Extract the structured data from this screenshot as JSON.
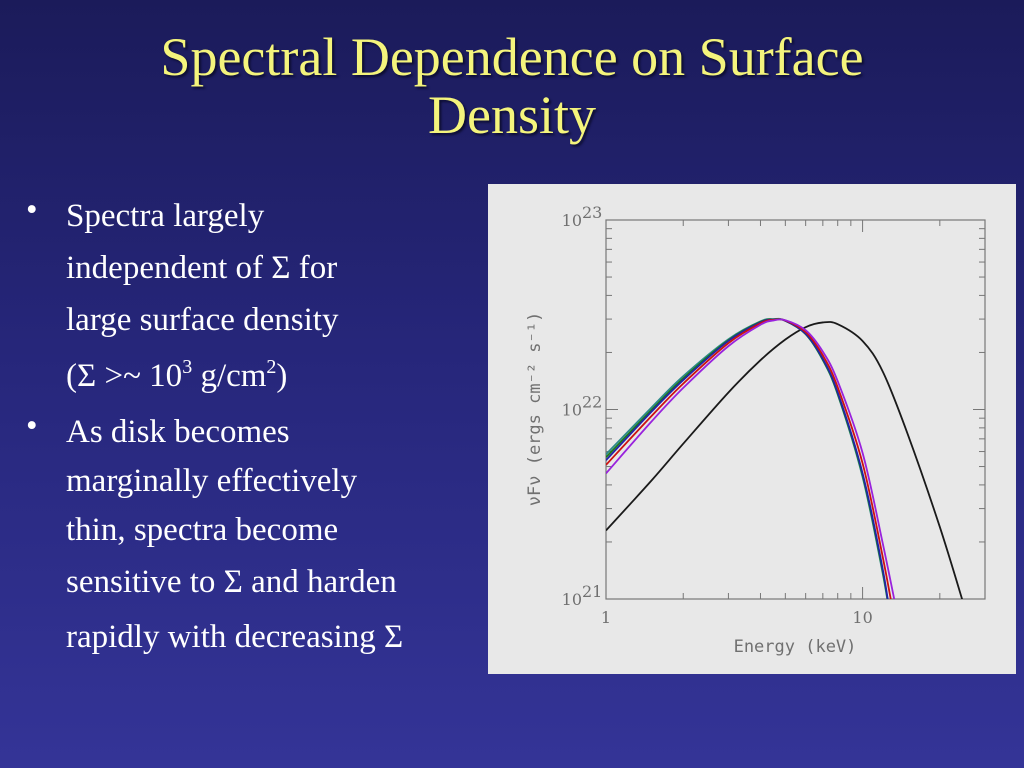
{
  "slide": {
    "title_line1": "Spectral Dependence on Surface",
    "title_line2": "Density",
    "bullet_symbol": "•",
    "sigma": "Σ",
    "bullet1": {
      "l1": "Spectra largely",
      "l2a": "independent of ",
      "l2b": " for",
      "l3": "large surface density",
      "l4a": "(",
      "l4b": " >~ 10",
      "l4sup1": "3",
      "l4c": " g/cm",
      "l4sup2": "2",
      "l4d": ")"
    },
    "bullet2": {
      "l1": "As disk becomes",
      "l2": "marginally effectively",
      "l3": "thin, spectra become",
      "l4a": "sensitive to ",
      "l4b": " and harden",
      "l5": "rapidly with decreasing "
    }
  },
  "chart_data": {
    "type": "line",
    "x_scale": "log",
    "y_scale": "log",
    "xlim": [
      1,
      30
    ],
    "ylim": [
      1e+21,
      1e+23
    ],
    "xlabel": "Energy (keV)",
    "ylabel": "νFν (ergs cm⁻² s⁻¹)",
    "x_tick_labels": [
      "1",
      "10"
    ],
    "y_tick_labels": [
      {
        "base": "10",
        "exp": "21"
      },
      {
        "base": "10",
        "exp": "22"
      },
      {
        "base": "10",
        "exp": "23"
      }
    ],
    "series": [
      {
        "color": "#1a1a1a",
        "x": [
          1,
          1.5,
          2,
          3,
          4,
          5,
          6,
          7,
          8,
          10,
          12,
          15,
          20,
          25
        ],
        "y": [
          2.3e+21,
          4.2e+21,
          6.6e+21,
          1.23e+22,
          1.82e+22,
          2.34e+22,
          2.72e+22,
          2.88e+22,
          2.82e+22,
          2.3e+22,
          1.58e+22,
          7.4e+21,
          2.4e+21,
          9e+20
        ]
      },
      {
        "color": "#2d8a8a",
        "x": [
          1,
          1.5,
          2,
          3,
          4,
          4.5,
          5,
          6,
          7,
          8,
          10,
          12,
          13
        ],
        "y": [
          5.8e+21,
          1.02e+22,
          1.5e+22,
          2.35e+22,
          2.92e+22,
          3e+22,
          2.95e+22,
          2.5e+22,
          1.82e+22,
          1.2e+22,
          4.4e+21,
          1.35e+21,
          7e+20
        ]
      },
      {
        "color": "#1a7a1a",
        "x": [
          1,
          1.5,
          2,
          3,
          4,
          4.5,
          5,
          6,
          7,
          8,
          10,
          12,
          13
        ],
        "y": [
          5.6e+21,
          9.9e+21,
          1.46e+22,
          2.32e+22,
          2.9e+22,
          2.99e+22,
          2.94e+22,
          2.5e+22,
          1.83e+22,
          1.21e+22,
          4.5e+21,
          1.38e+21,
          7e+20
        ]
      },
      {
        "color": "#2222aa",
        "x": [
          1,
          1.5,
          2,
          3,
          4,
          4.5,
          5,
          6,
          7,
          8,
          10,
          12,
          13
        ],
        "y": [
          5.4e+21,
          9.7e+21,
          1.43e+22,
          2.3e+22,
          2.88e+22,
          2.98e+22,
          2.94e+22,
          2.51e+22,
          1.85e+22,
          1.23e+22,
          4.6e+21,
          1.42e+21,
          7e+20
        ]
      },
      {
        "color": "#cc1111",
        "x": [
          1,
          1.5,
          2,
          3,
          4,
          4.5,
          5,
          6,
          7,
          8,
          10,
          12,
          13.5
        ],
        "y": [
          5.1e+21,
          9.2e+21,
          1.37e+22,
          2.24e+22,
          2.85e+22,
          2.97e+22,
          2.95e+22,
          2.56e+22,
          1.93e+22,
          1.31e+22,
          5.2e+21,
          1.65e+21,
          7e+20
        ]
      },
      {
        "color": "#9922dd",
        "x": [
          1,
          1.5,
          2,
          3,
          4,
          4.5,
          5,
          6,
          7,
          8,
          10,
          12,
          14
        ],
        "y": [
          4.6e+21,
          8.6e+21,
          1.3e+22,
          2.16e+22,
          2.8e+22,
          2.95e+22,
          2.96e+22,
          2.62e+22,
          2.02e+22,
          1.41e+22,
          5.9e+21,
          1.95e+21,
          7e+20
        ]
      }
    ]
  }
}
